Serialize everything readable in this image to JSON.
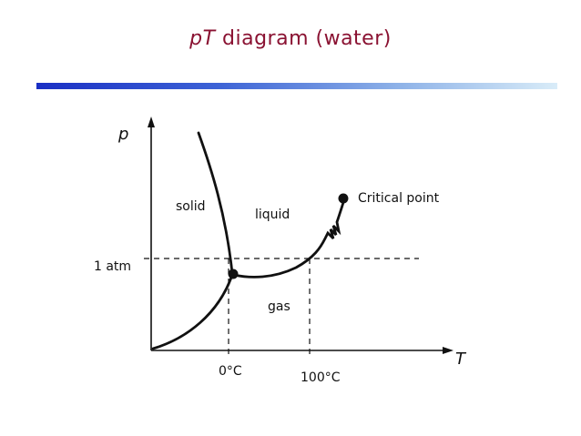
{
  "title": {
    "italic_part": "pT",
    "rest": " diagram (water)"
  },
  "axes": {
    "y_label": "p",
    "x_label": "T"
  },
  "regions": {
    "solid": "solid",
    "liquid": "liquid",
    "gas": "gas"
  },
  "markers": {
    "critical_point": "Critical point",
    "pressure_ref": "1 atm",
    "temp_freeze": "0°C",
    "temp_boil": "100°C"
  },
  "colors": {
    "title": "#8a1232",
    "rule_start": "#1a2fc4",
    "rule_end": "#d9ecf8",
    "lines": "#111111"
  }
}
